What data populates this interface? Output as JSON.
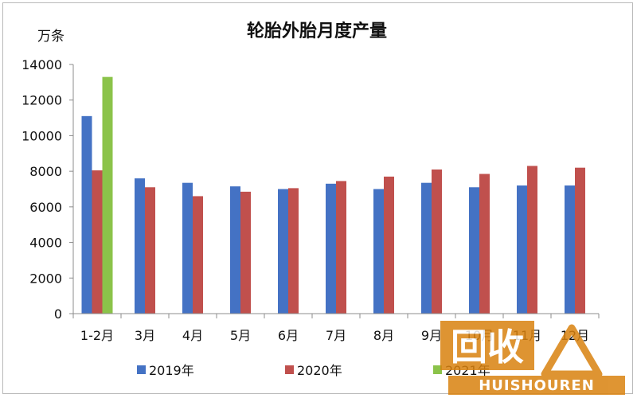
{
  "chart_data": {
    "type": "bar",
    "title": "轮胎外胎月度产量",
    "unit_label": "万条",
    "xlabel": "",
    "ylabel": "万条",
    "ylim": [
      0,
      14000
    ],
    "yticks": [
      0,
      2000,
      4000,
      6000,
      8000,
      10000,
      12000,
      14000
    ],
    "grid": false,
    "legend_position": "bottom",
    "categories": [
      "1-2月",
      "3月",
      "4月",
      "5月",
      "6月",
      "7月",
      "8月",
      "9月",
      "10月",
      "11月",
      "12月"
    ],
    "series": [
      {
        "name": "2019年",
        "color": "#4472c4",
        "values": [
          11100,
          7600,
          7350,
          7150,
          7000,
          7300,
          7000,
          7350,
          7100,
          7200,
          7200
        ]
      },
      {
        "name": "2020年",
        "color": "#c0504d",
        "values": [
          8050,
          7100,
          6600,
          6850,
          7050,
          7450,
          7700,
          8100,
          7850,
          8300,
          8200
        ]
      },
      {
        "name": "2021年",
        "color": "#8bc34a",
        "values": [
          13300,
          null,
          null,
          null,
          null,
          null,
          null,
          null,
          null,
          null,
          null
        ]
      }
    ]
  },
  "watermark": {
    "main_text": "回收",
    "sub_text": "HUISHOUREN",
    "icon": "recycle-triangle-icon"
  }
}
